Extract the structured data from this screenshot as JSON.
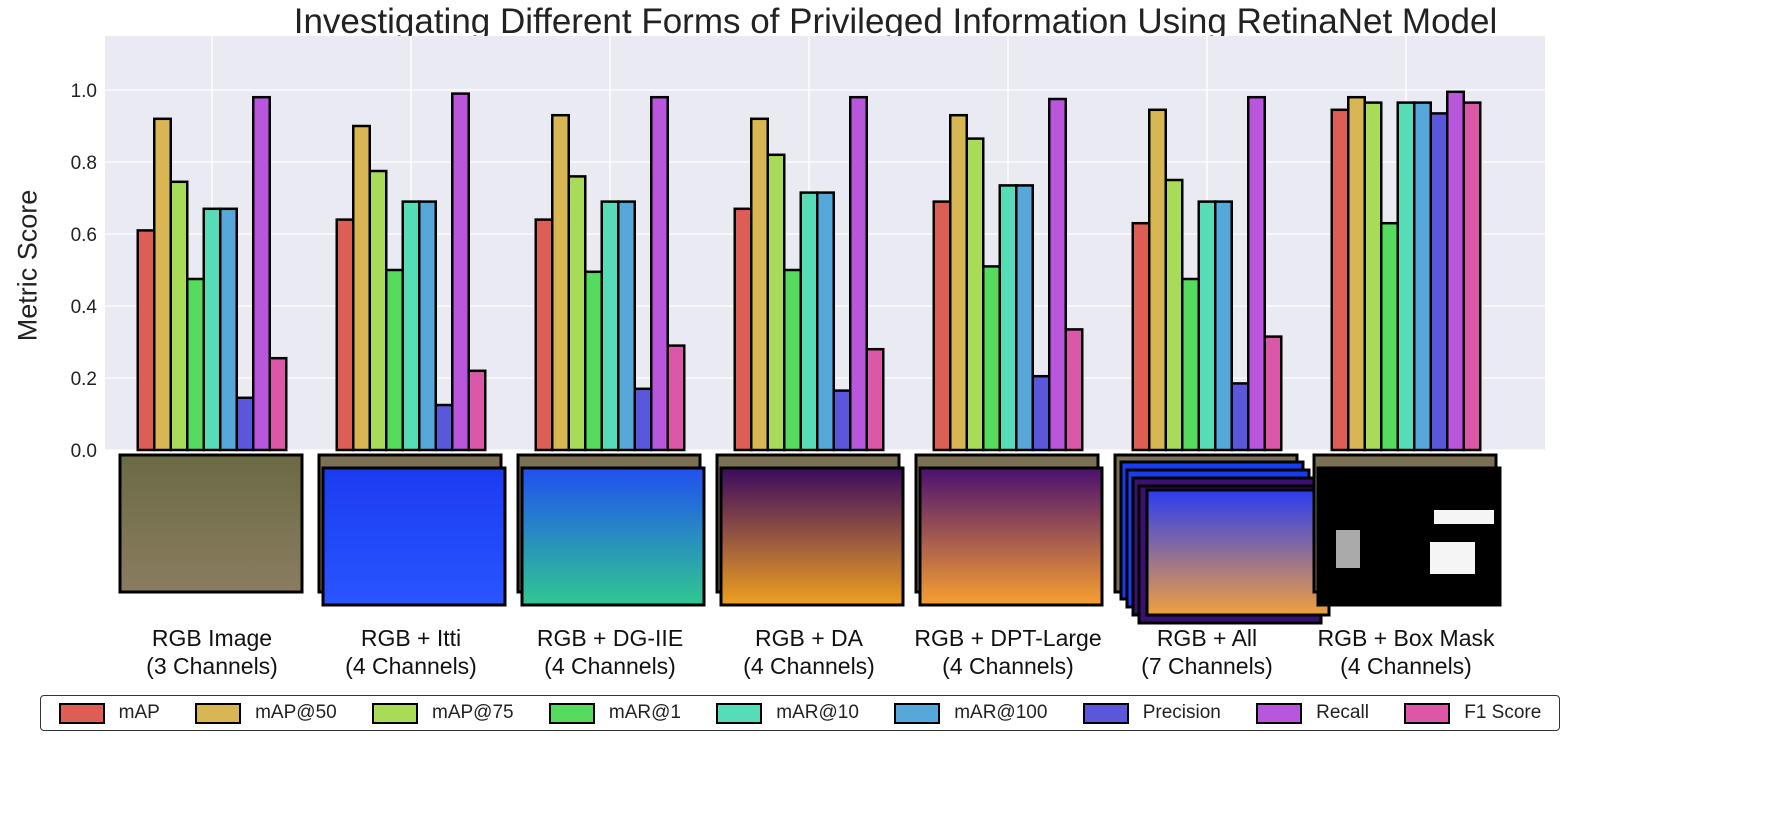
{
  "chart_data": {
    "type": "bar",
    "title": "Investigating Different Forms of Privileged Information Using RetinaNet Model",
    "xlabel": "",
    "ylabel": "Metric Score",
    "ylim": [
      0,
      1.15
    ],
    "yticks": [
      "0.0",
      "0.2",
      "0.4",
      "0.6",
      "0.8",
      "1.0"
    ],
    "grid": true,
    "legend_position": "bottom",
    "categories": [
      [
        "RGB Image",
        "(3 Channels)"
      ],
      [
        "RGB + Itti",
        "(4 Channels)"
      ],
      [
        "RGB + DG-IIE",
        "(4 Channels)"
      ],
      [
        "RGB + DA",
        "(4 Channels)"
      ],
      [
        "RGB + DPT-Large",
        "(4 Channels)"
      ],
      [
        "RGB + All",
        "(7 Channels)"
      ],
      [
        "RGB + Box Mask",
        "(4 Channels)"
      ]
    ],
    "series": [
      {
        "name": "mAP",
        "color": "#dc5e55",
        "values": [
          0.61,
          0.64,
          0.64,
          0.67,
          0.69,
          0.63,
          0.945
        ]
      },
      {
        "name": "mAP@50",
        "color": "#d9b654",
        "values": [
          0.92,
          0.9,
          0.93,
          0.92,
          0.93,
          0.945,
          0.98
        ]
      },
      {
        "name": "mAP@75",
        "color": "#a8db57",
        "values": [
          0.745,
          0.775,
          0.76,
          0.82,
          0.865,
          0.75,
          0.965
        ]
      },
      {
        "name": "mAR@1",
        "color": "#57db5e",
        "values": [
          0.475,
          0.5,
          0.495,
          0.5,
          0.51,
          0.475,
          0.63
        ]
      },
      {
        "name": "mAR@10",
        "color": "#57dcb8",
        "values": [
          0.67,
          0.69,
          0.69,
          0.715,
          0.735,
          0.69,
          0.965
        ]
      },
      {
        "name": "mAR@100",
        "color": "#57a8da",
        "values": [
          0.67,
          0.69,
          0.69,
          0.715,
          0.735,
          0.69,
          0.965
        ]
      },
      {
        "name": "Precision",
        "color": "#5b57db",
        "values": [
          0.145,
          0.125,
          0.17,
          0.165,
          0.205,
          0.185,
          0.935
        ]
      },
      {
        "name": "Recall",
        "color": "#b857db",
        "values": [
          0.98,
          0.99,
          0.98,
          0.98,
          0.975,
          0.98,
          0.995
        ]
      },
      {
        "name": "F1 Score",
        "color": "#db57a8",
        "values": [
          0.255,
          0.22,
          0.29,
          0.28,
          0.335,
          0.315,
          0.965
        ]
      }
    ]
  }
}
